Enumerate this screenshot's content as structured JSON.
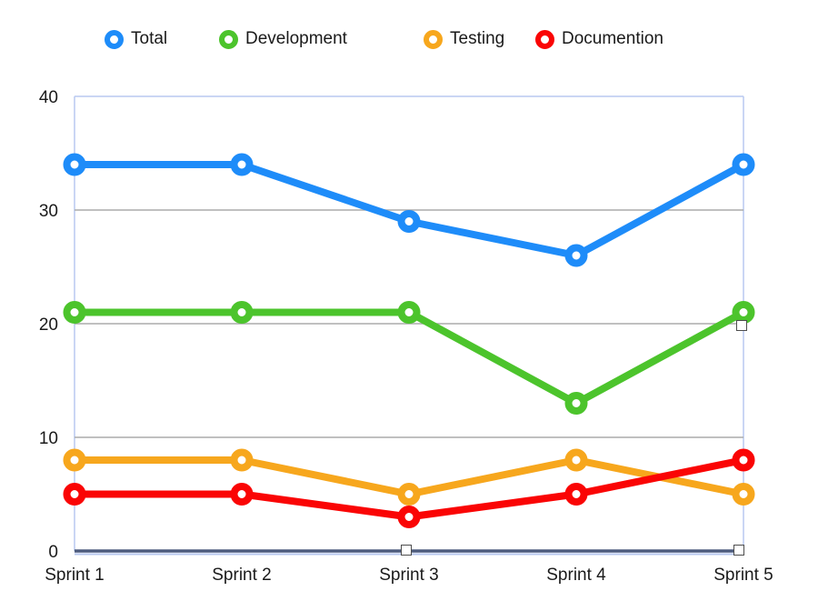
{
  "chart_data": {
    "type": "line",
    "title": "",
    "categories": [
      "Sprint 1",
      "Sprint 2",
      "Sprint 3",
      "Sprint 4",
      "Sprint 5"
    ],
    "series": [
      {
        "name": "Total",
        "color": "#1E8CF9",
        "values": [
          34,
          34,
          29,
          26,
          34
        ]
      },
      {
        "name": "Development",
        "color": "#4CC42C",
        "values": [
          21,
          21,
          21,
          13,
          21
        ]
      },
      {
        "name": "Testing",
        "color": "#F7A71D",
        "values": [
          8,
          8,
          5,
          8,
          5
        ]
      },
      {
        "name": "Documention",
        "color": "#FA0505",
        "values": [
          5,
          5,
          3,
          5,
          8
        ]
      }
    ],
    "xlabel": "",
    "ylabel": "",
    "ylim": [
      0,
      40
    ],
    "yticks": [
      0,
      10,
      20,
      30,
      40
    ],
    "grid": true,
    "legend_position": "top",
    "marker_style": "ring"
  },
  "style_colors": {
    "background": "#FFFFFF",
    "grid": "#ABABAB",
    "plot_border": "#B9C9F0",
    "axis_line": "#4D5C7E",
    "text": "#1A1A1A"
  }
}
